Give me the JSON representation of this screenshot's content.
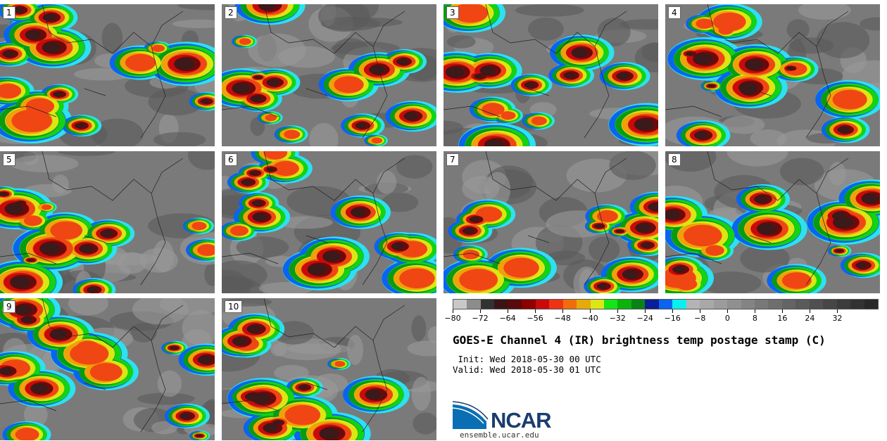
{
  "panels": [
    {
      "label": "1"
    },
    {
      "label": "2"
    },
    {
      "label": "3"
    },
    {
      "label": "4"
    },
    {
      "label": "5"
    },
    {
      "label": "6"
    },
    {
      "label": "7"
    },
    {
      "label": "8"
    },
    {
      "label": "9"
    },
    {
      "label": "10"
    }
  ],
  "colorbar": {
    "colors": [
      "#c8c8c8",
      "#8c8c8c",
      "#323232",
      "#3c1414",
      "#5a0a0a",
      "#8c0000",
      "#c80a0a",
      "#f03214",
      "#f06e0a",
      "#e6aa0a",
      "#dce614",
      "#14e614",
      "#0ab40a",
      "#0a8214",
      "#0a1e96",
      "#0a64f0",
      "#0af0f0",
      "#b4b4b4",
      "#a8a8a8",
      "#9c9c9c",
      "#909090",
      "#848484",
      "#787878",
      "#6e6e6e",
      "#646464",
      "#5a5a5a",
      "#505050",
      "#464646",
      "#3c3c3c",
      "#323232",
      "#282828"
    ],
    "ticks": [
      "-80",
      "-72",
      "-64",
      "-56",
      "-48",
      "-40",
      "-32",
      "-24",
      "-16",
      "-8",
      "0",
      "8",
      "16",
      "24",
      "32"
    ]
  },
  "title": "GOES-E Channel 4 (IR) brightness temp postage stamp (C)",
  "init": " Init: Wed 2018-05-30 00 UTC",
  "valid": "Valid: Wed 2018-05-30 01 UTC",
  "logo": {
    "text": "NCAR",
    "site": "ensemble.ucar.edu"
  }
}
